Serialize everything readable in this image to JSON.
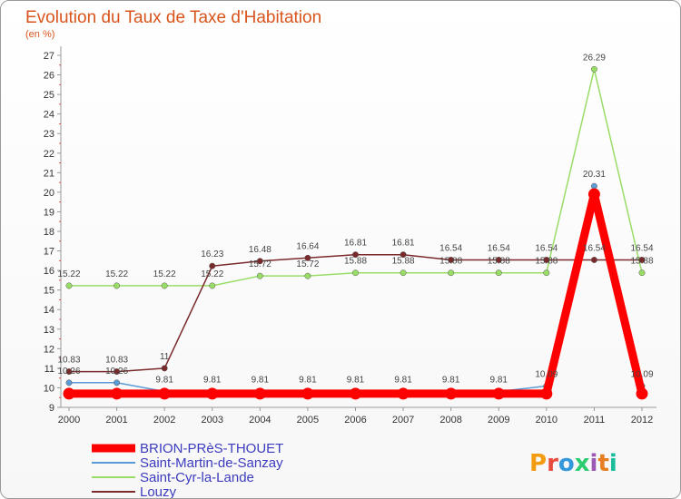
{
  "chart_data": {
    "type": "line",
    "title": "Evolution du Taux de Taxe d'Habitation",
    "subtitle": "(en %)",
    "categories": [
      "2000",
      "2001",
      "2002",
      "2003",
      "2004",
      "2005",
      "2006",
      "2007",
      "2008",
      "2009",
      "2010",
      "2011",
      "2012"
    ],
    "ylim": [
      9,
      27
    ],
    "yticks": [
      9,
      10,
      11,
      12,
      13,
      14,
      15,
      16,
      17,
      18,
      19,
      20,
      21,
      22,
      23,
      24,
      25,
      26,
      27
    ],
    "grid": false,
    "legend_position": "bottom-left",
    "series": [
      {
        "name": "BRION-PRèS-THOUET",
        "color": "#ff0000",
        "values": [
          9.7,
          9.7,
          9.7,
          9.7,
          9.7,
          9.7,
          9.7,
          9.7,
          9.7,
          9.7,
          9.7,
          19.9,
          9.7
        ],
        "labels": [
          "",
          "",
          "",
          "",
          "",
          "",
          "",
          "",
          "",
          "",
          "",
          "",
          ""
        ]
      },
      {
        "name": "Saint-Martin-de-Sanzay",
        "color": "#5b9bd5",
        "values": [
          10.26,
          10.26,
          9.81,
          9.81,
          9.81,
          9.81,
          9.81,
          9.81,
          9.81,
          9.81,
          10.09,
          20.31,
          10.09
        ],
        "labels": [
          "10.26",
          "10.26",
          "9.81",
          "9.81",
          "9.81",
          "9.81",
          "9.81",
          "9.81",
          "9.81",
          "9.81",
          "10.09",
          "20.31",
          "10.09"
        ]
      },
      {
        "name": "Saint-Cyr-la-Lande",
        "color": "#99dd66",
        "values": [
          15.22,
          15.22,
          15.22,
          15.22,
          15.72,
          15.72,
          15.88,
          15.88,
          15.88,
          15.88,
          15.88,
          26.29,
          15.88
        ],
        "labels": [
          "15.22",
          "15.22",
          "15.22",
          "15.22",
          "15.72",
          "15.72",
          "15.88",
          "15.88",
          "15.88",
          "15.88",
          "15.88",
          "26.29",
          "15.88"
        ]
      },
      {
        "name": "Louzy",
        "color": "#7a2a2a",
        "values": [
          10.83,
          10.83,
          11,
          16.23,
          16.48,
          16.64,
          16.81,
          16.81,
          16.54,
          16.54,
          16.54,
          16.54,
          16.54
        ],
        "labels": [
          "10.83",
          "10.83",
          "11",
          "16.23",
          "16.48",
          "16.64",
          "16.81",
          "16.81",
          "16.54",
          "16.54",
          "16.54",
          "16.54",
          "16.54"
        ]
      }
    ]
  },
  "brand": {
    "letters": [
      "P",
      "r",
      "o",
      "x",
      "i",
      "t",
      "i"
    ],
    "colors": [
      "#f39c12",
      "#e74c3c",
      "#3498db",
      "#2ecc71",
      "#9b59b6",
      "#e67e22",
      "#1abc9c"
    ]
  }
}
